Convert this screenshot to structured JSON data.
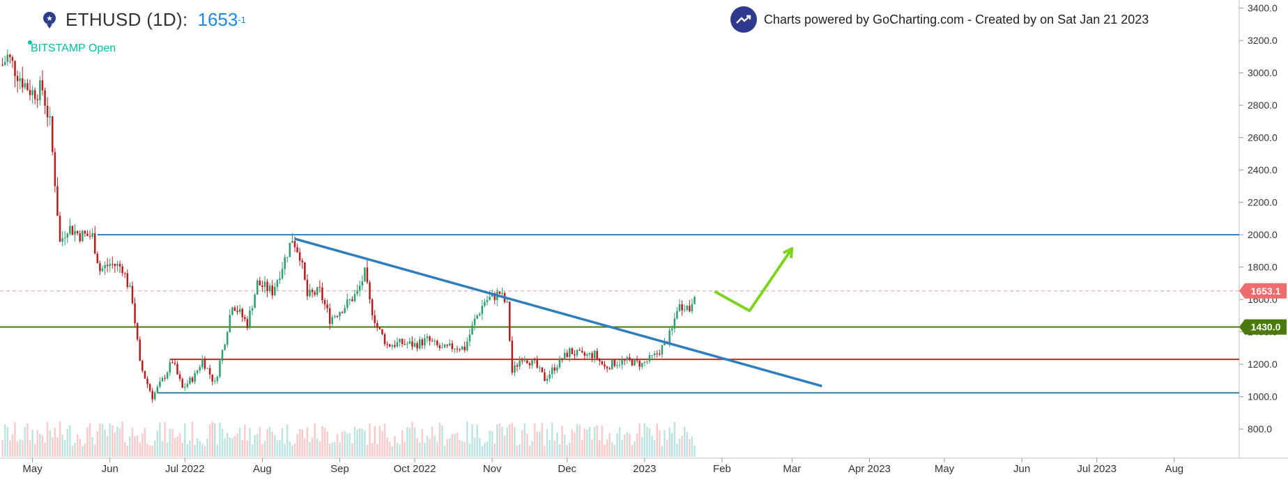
{
  "header": {
    "symbol": "ETHUSD (1D):",
    "price": "1653",
    "price_sup": "-1",
    "source_label": "BITSTAMP Open",
    "credit": "Charts powered by GoCharting.com - Created by  on Sat Jan 21 2023"
  },
  "colors": {
    "up": "#26a69a",
    "down": "#ef5350",
    "candle_up_body": "#2e9e6e",
    "candle_down_body": "#b71c1c",
    "blue_line": "#2e7dbd",
    "green_line": "#4a7a0c",
    "red_line": "#c62828",
    "arrow": "#7ed321",
    "price_line": "#ef9a9a"
  },
  "chart_data": {
    "type": "candlestick",
    "title": "ETHUSD (1D)",
    "ylim": [
      620,
      3450
    ],
    "y_ticks": [
      "3400.0",
      "3200.0",
      "3000.0",
      "2800.0",
      "2600.0",
      "2400.0",
      "2200.0",
      "2000.0",
      "1800.0",
      "1600.0",
      "1400.0",
      "1200.0",
      "1000.0",
      "800.0"
    ],
    "y_tick_values": [
      3400,
      3200,
      3000,
      2800,
      2600,
      2400,
      2200,
      2000,
      1800,
      1600,
      1400,
      1200,
      1000,
      800
    ],
    "x_ticks": [
      "May",
      "Jun",
      "Jul 2022",
      "Aug",
      "Sep",
      "Oct 2022",
      "Nov",
      "Dec",
      "2023",
      "Feb",
      "Mar",
      "Apr 2023",
      "May",
      "Jun",
      "Jul 2023",
      "Aug"
    ],
    "x_tick_dates": [
      "2022-05-01",
      "2022-06-01",
      "2022-07-01",
      "2022-08-01",
      "2022-09-01",
      "2022-10-01",
      "2022-11-01",
      "2022-12-01",
      "2023-01-01",
      "2023-02-01",
      "2023-03-01",
      "2023-04-01",
      "2023-05-01",
      "2023-06-01",
      "2023-07-01",
      "2023-08-01"
    ],
    "xlim": [
      "2022-04-18",
      "2023-08-27"
    ],
    "close_path": [
      [
        "2022-04-19",
        3050
      ],
      [
        "2022-04-21",
        3100
      ],
      [
        "2022-04-25",
        3000
      ],
      [
        "2022-04-28",
        2930
      ],
      [
        "2022-05-01",
        2880
      ],
      [
        "2022-05-05",
        2900
      ],
      [
        "2022-05-08",
        2680
      ],
      [
        "2022-05-10",
        2330
      ],
      [
        "2022-05-12",
        1950
      ],
      [
        "2022-05-15",
        2050
      ],
      [
        "2022-05-20",
        2000
      ],
      [
        "2022-05-25",
        1990
      ],
      [
        "2022-05-28",
        1780
      ],
      [
        "2022-06-01",
        1820
      ],
      [
        "2022-06-06",
        1800
      ],
      [
        "2022-06-10",
        1600
      ],
      [
        "2022-06-13",
        1200
      ],
      [
        "2022-06-18",
        1000
      ],
      [
        "2022-06-22",
        1100
      ],
      [
        "2022-06-26",
        1220
      ],
      [
        "2022-06-30",
        1050
      ],
      [
        "2022-07-05",
        1130
      ],
      [
        "2022-07-08",
        1230
      ],
      [
        "2022-07-13",
        1080
      ],
      [
        "2022-07-17",
        1350
      ],
      [
        "2022-07-20",
        1580
      ],
      [
        "2022-07-26",
        1450
      ],
      [
        "2022-07-30",
        1700
      ],
      [
        "2022-08-05",
        1650
      ],
      [
        "2022-08-10",
        1850
      ],
      [
        "2022-08-13",
        1980
      ],
      [
        "2022-08-16",
        1880
      ],
      [
        "2022-08-19",
        1620
      ],
      [
        "2022-08-24",
        1650
      ],
      [
        "2022-08-28",
        1480
      ],
      [
        "2022-09-03",
        1560
      ],
      [
        "2022-09-08",
        1640
      ],
      [
        "2022-09-11",
        1760
      ],
      [
        "2022-09-13",
        1580
      ],
      [
        "2022-09-16",
        1430
      ],
      [
        "2022-09-20",
        1320
      ],
      [
        "2022-09-26",
        1330
      ],
      [
        "2022-10-01",
        1320
      ],
      [
        "2022-10-06",
        1350
      ],
      [
        "2022-10-12",
        1290
      ],
      [
        "2022-10-17",
        1310
      ],
      [
        "2022-10-21",
        1300
      ],
      [
        "2022-10-25",
        1470
      ],
      [
        "2022-10-29",
        1590
      ],
      [
        "2022-11-04",
        1640
      ],
      [
        "2022-11-07",
        1560
      ],
      [
        "2022-11-09",
        1150
      ],
      [
        "2022-11-13",
        1250
      ],
      [
        "2022-11-18",
        1200
      ],
      [
        "2022-11-22",
        1110
      ],
      [
        "2022-11-27",
        1200
      ],
      [
        "2022-12-02",
        1280
      ],
      [
        "2022-12-07",
        1250
      ],
      [
        "2022-12-12",
        1260
      ],
      [
        "2022-12-16",
        1180
      ],
      [
        "2022-12-20",
        1210
      ],
      [
        "2022-12-26",
        1220
      ],
      [
        "2022-12-31",
        1200
      ],
      [
        "2023-01-05",
        1250
      ],
      [
        "2023-01-09",
        1320
      ],
      [
        "2023-01-12",
        1410
      ],
      [
        "2023-01-14",
        1550
      ],
      [
        "2023-01-17",
        1570
      ],
      [
        "2023-01-19",
        1540
      ],
      [
        "2023-01-21",
        1653
      ]
    ],
    "horizontal_lines": [
      {
        "value": 2000,
        "color": "#2e7dbd",
        "from": "2022-05-27",
        "to": "2023-08-27"
      },
      {
        "value": 1430,
        "color": "#4a7a0c",
        "from": "2022-04-18",
        "to": "2023-08-27",
        "label": "1430.0"
      },
      {
        "value": 1230,
        "color": "#c62828",
        "from": "2022-06-25",
        "to": "2023-08-27"
      },
      {
        "value": 1023,
        "color": "#2e7dbd",
        "from": "2022-06-20",
        "to": "2023-08-27"
      },
      {
        "value": 1653.1,
        "color": "#ef9a9a",
        "dashed": true,
        "from": "2022-04-18",
        "to": "2023-08-27",
        "label": "1653.1"
      }
    ],
    "trendline": {
      "from": [
        "2022-08-14",
        1975
      ],
      "to": [
        "2023-03-13",
        1065
      ],
      "color": "#2e7dbd"
    },
    "arrow": {
      "points": [
        [
          "2023-01-29",
          1650
        ],
        [
          "2023-02-12",
          1530
        ],
        [
          "2023-03-01",
          1915
        ]
      ],
      "color": "#7ed321"
    }
  }
}
